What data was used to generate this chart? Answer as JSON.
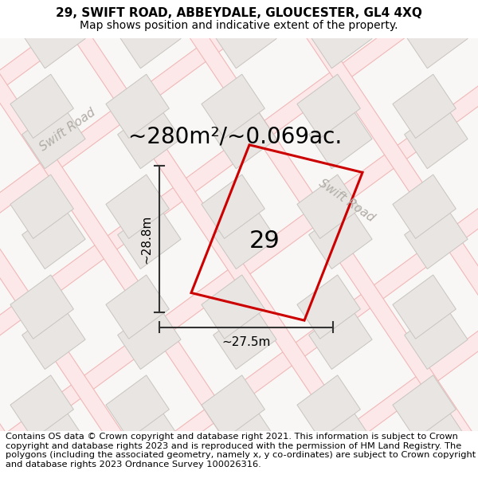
{
  "title_line1": "29, SWIFT ROAD, ABBEYDALE, GLOUCESTER, GL4 4XQ",
  "title_line2": "Map shows position and indicative extent of the property.",
  "area_label": "~280m²/~0.069ac.",
  "number_label": "29",
  "dim_height": "~28.8m",
  "dim_width": "~27.5m",
  "road_label1": "Swift Road",
  "road_label2": "Swift Road",
  "footer_text": "Contains OS data © Crown copyright and database right 2021. This information is subject to Crown copyright and database rights 2023 and is reproduced with the permission of HM Land Registry. The polygons (including the associated geometry, namely x, y co-ordinates) are subject to Crown copyright and database rights 2023 Ordnance Survey 100026316.",
  "map_bg": "#f8f7f5",
  "road_fill_color": "#fce8e8",
  "road_line_color": "#f0b8b8",
  "building_fill": "#e8e5e2",
  "building_outline": "#c8c5c0",
  "property_edge_color": "#cc0000",
  "dim_line_color": "#333333",
  "road_text_color": "#b0aba5",
  "title_fontsize": 11,
  "subtitle_fontsize": 10,
  "area_fontsize": 20,
  "number_fontsize": 22,
  "dim_fontsize": 11,
  "road_label_fontsize": 11,
  "footer_fontsize": 8.2
}
